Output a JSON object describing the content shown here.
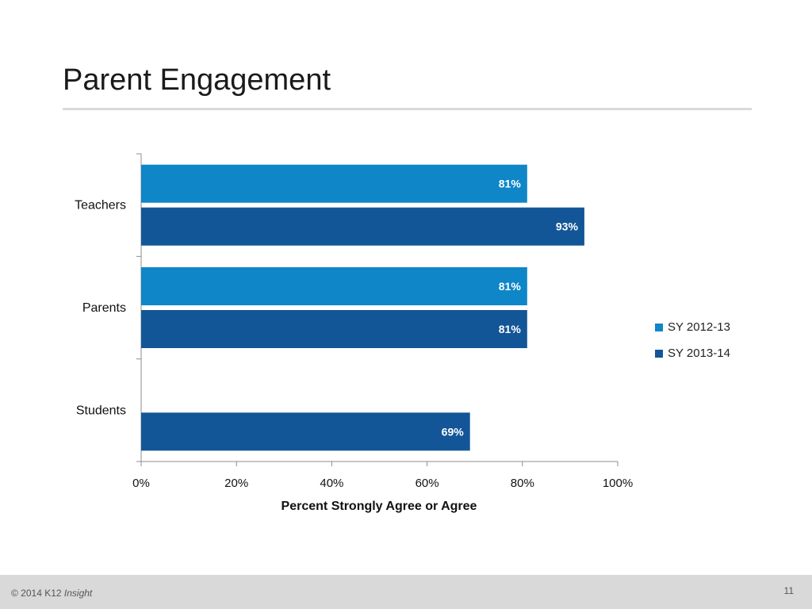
{
  "slide": {
    "title": "Parent Engagement",
    "page_number": "11",
    "footer": {
      "copyright": "© 2014 K12",
      "brand": "Insight"
    }
  },
  "colors": {
    "series_1": "#0e86c8",
    "series_2": "#135697"
  },
  "chart_data": {
    "type": "bar",
    "orientation": "horizontal",
    "title": "",
    "xlabel": "Percent Strongly Agree or Agree",
    "ylabel": "",
    "categories": [
      "Teachers",
      "Parents",
      "Students"
    ],
    "series": [
      {
        "name": "SY 2012-13",
        "values": [
          81,
          81,
          null
        ],
        "labels": [
          "81%",
          "81%",
          ""
        ]
      },
      {
        "name": "SY 2013-14",
        "values": [
          93,
          81,
          69
        ],
        "labels": [
          "93%",
          "81%",
          "69%"
        ]
      }
    ],
    "xlim": [
      0,
      100
    ],
    "x_ticks": [
      0,
      20,
      40,
      60,
      80,
      100
    ],
    "x_tick_labels": [
      "0%",
      "20%",
      "40%",
      "60%",
      "80%",
      "100%"
    ],
    "grid": false,
    "legend_position": "right"
  }
}
